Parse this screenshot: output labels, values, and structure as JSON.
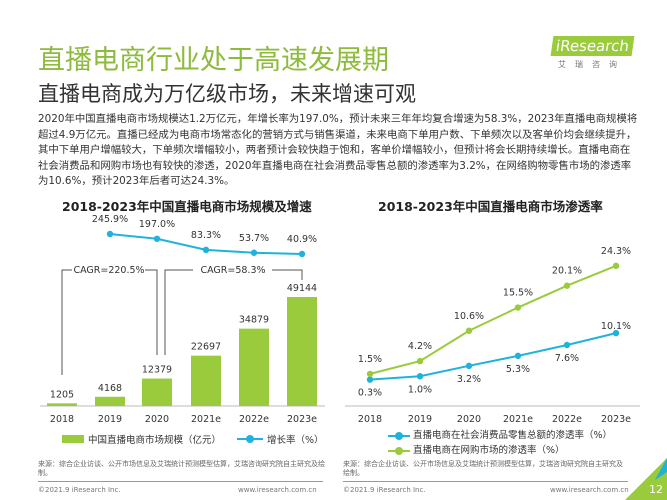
{
  "header": {
    "title": "直播电商行业处于高速发展期",
    "subtitle": "直播电商成为万亿级市场，未来增速可观",
    "logo": "iResearch",
    "logo_cn": "艾瑞咨询",
    "body": "2020年中国直播电商市场规模达1.2万亿元，年增长率为197.0%，预计未来三年年均复合增速为58.3%，2023年直播电商规模将超过4.9万亿元。直播已经成为电商市场常态化的营销方式与销售渠道，未来电商下单用户数、下单频次以及客单价均会继续提升，其中下单用户增幅较大，下单频次增幅较小，两者预计会较快趋于饱和，客单价增幅较小，但预计将会长期持续增长。直播电商在社会消费品和网购市场也有较快的渗透，2020年直播电商在社会消费品零售总额的渗透率为3.2%，在网络购物零售市场的渗透率为10.6%，预计2023年后者可达24.3%。"
  },
  "chart_data": [
    {
      "type": "bar",
      "title": "2018-2023年中国直播电商市场规模及增速",
      "categories": [
        "2018",
        "2019",
        "2020",
        "2021e",
        "2022e",
        "2023e"
      ],
      "series": [
        {
          "name": "中国直播电商市场规模（亿元）",
          "type": "bar",
          "values": [
            1205,
            4168,
            12379,
            22697,
            34879,
            49144
          ],
          "color": "#9acb3c"
        },
        {
          "name": "增长率（%）",
          "type": "line",
          "values": [
            null,
            245.9,
            197.0,
            83.3,
            53.7,
            40.9
          ],
          "labels": [
            "",
            "245.9%",
            "197.0%",
            "83.3%",
            "53.7%",
            "40.9%"
          ],
          "color": "#1fb3dc"
        }
      ],
      "annotations": [
        "CAGR=220.5%",
        "CAGR=58.3%"
      ],
      "legend": "bottom",
      "grid": false
    },
    {
      "type": "line",
      "title": "2018-2023年中国直播电商市场渗透率",
      "categories": [
        "2018",
        "2019",
        "2020",
        "2021e",
        "2022e",
        "2023e"
      ],
      "series": [
        {
          "name": "直播电商在社会消费品零售总额的渗透率（%）",
          "values": [
            0.3,
            1.0,
            3.2,
            5.3,
            7.6,
            10.1
          ],
          "labels": [
            "0.3%",
            "1.0%",
            "3.2%",
            "5.3%",
            "7.6%",
            "10.1%"
          ],
          "color": "#1fb3dc"
        },
        {
          "name": "直播电商在网购市场的渗透率（%）",
          "values": [
            1.5,
            4.2,
            10.6,
            15.5,
            20.1,
            24.3
          ],
          "labels": [
            "1.5%",
            "4.2%",
            "10.6%",
            "15.5%",
            "20.1%",
            "24.3%"
          ],
          "color": "#9acb3c"
        }
      ],
      "legend": "bottom",
      "grid": false
    }
  ],
  "footer": {
    "source": "来源：综合企业访谈、公开市场信息及艾瑞统计预测模型估算，艾瑞咨询研究院自主研究及绘制。",
    "copyright": "©2021.9 iResearch Inc.",
    "url": "www.iresearch.com.cn",
    "page": "12"
  }
}
